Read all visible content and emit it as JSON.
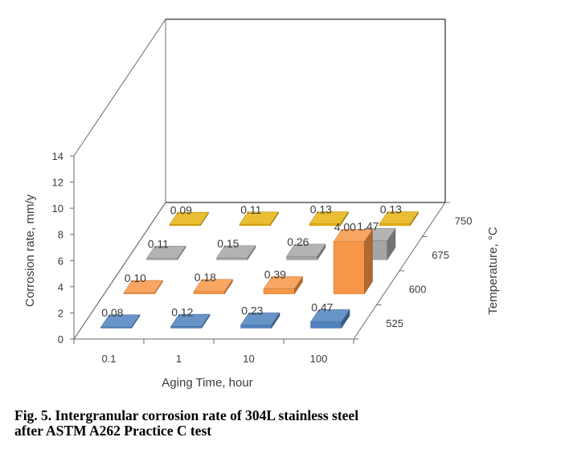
{
  "chart_data": {
    "type": "bar",
    "subtype": "3d-column",
    "xlabel": "Aging Time, hour",
    "ylabel": "Corrosion rate, mm/y",
    "zlabel": "Temperature, °C",
    "categories": [
      "0.1",
      "1",
      "10",
      "100"
    ],
    "ylim": [
      0,
      14
    ],
    "yticks": [
      "0",
      "2",
      "4",
      "6",
      "8",
      "10",
      "12",
      "14"
    ],
    "series": [
      {
        "name": "525",
        "color": "#4F81BD",
        "values": [
          0.08,
          0.12,
          0.23,
          0.47
        ],
        "labels": [
          "0.08",
          "0.12",
          "0.23",
          "0.47"
        ]
      },
      {
        "name": "600",
        "color": "#F79646",
        "values": [
          0.1,
          0.18,
          0.39,
          4.0
        ],
        "labels": [
          "0.10",
          "0.18",
          "0.39",
          "4.00"
        ]
      },
      {
        "name": "675",
        "color": "#A5A5A5",
        "values": [
          0.11,
          0.15,
          0.26,
          1.47
        ],
        "labels": [
          "0.11",
          "0.15",
          "0.26",
          "1.47"
        ]
      },
      {
        "name": "750",
        "color": "#E8B10E",
        "values": [
          0.09,
          0.11,
          0.13,
          0.13
        ],
        "labels": [
          "0.09",
          "0.11",
          "0.13",
          "0.13"
        ]
      }
    ]
  },
  "caption": {
    "line1": "Fig. 5. Intergranular corrosion rate of 304L stainless steel",
    "line2": "after ASTM A262 Practice C test"
  }
}
